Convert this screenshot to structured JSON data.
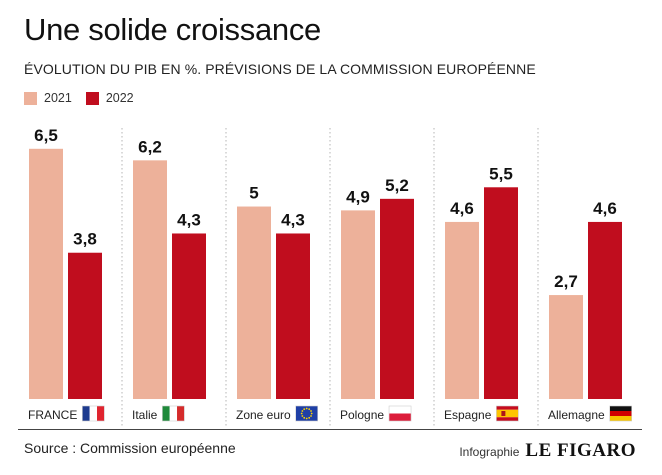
{
  "header": {
    "title": "Une solide croissance",
    "subtitle": "ÉVOLUTION DU PIB EN %. PRÉVISIONS DE LA COMMISSION EUROPÉENNE"
  },
  "colors": {
    "series_2021": "#edb19a",
    "series_2022": "#c00d1e"
  },
  "chart_data": {
    "type": "bar",
    "title": "Une solide croissance",
    "subtitle": "ÉVOLUTION DU PIB EN %. PRÉVISIONS DE LA COMMISSION EUROPÉENNE",
    "categories": [
      "FRANCE",
      "Italie",
      "Zone euro",
      "Pologne",
      "Espagne",
      "Allemagne"
    ],
    "category_flags": [
      "flag-france-icon",
      "flag-italy-icon",
      "flag-eu-icon",
      "flag-poland-icon",
      "flag-spain-icon",
      "flag-germany-icon"
    ],
    "series": [
      {
        "name": "2021",
        "values": [
          6.5,
          6.2,
          5,
          4.9,
          4.6,
          2.7
        ],
        "labels": [
          "6,5",
          "6,2",
          "5",
          "4,9",
          "4,6",
          "2,7"
        ],
        "color": "#edb19a"
      },
      {
        "name": "2022",
        "values": [
          3.8,
          4.3,
          4.3,
          5.2,
          5.5,
          4.6
        ],
        "labels": [
          "3,8",
          "4,3",
          "4,3",
          "5,2",
          "5,5",
          "4,6"
        ],
        "color": "#c00d1e"
      }
    ],
    "ylim": [
      0,
      7.3
    ],
    "grid": false,
    "legend": "top-left"
  },
  "footer": {
    "source": "Source : Commission européenne",
    "credit_label": "Infographie",
    "credit_logo": "LE FIGARO"
  }
}
